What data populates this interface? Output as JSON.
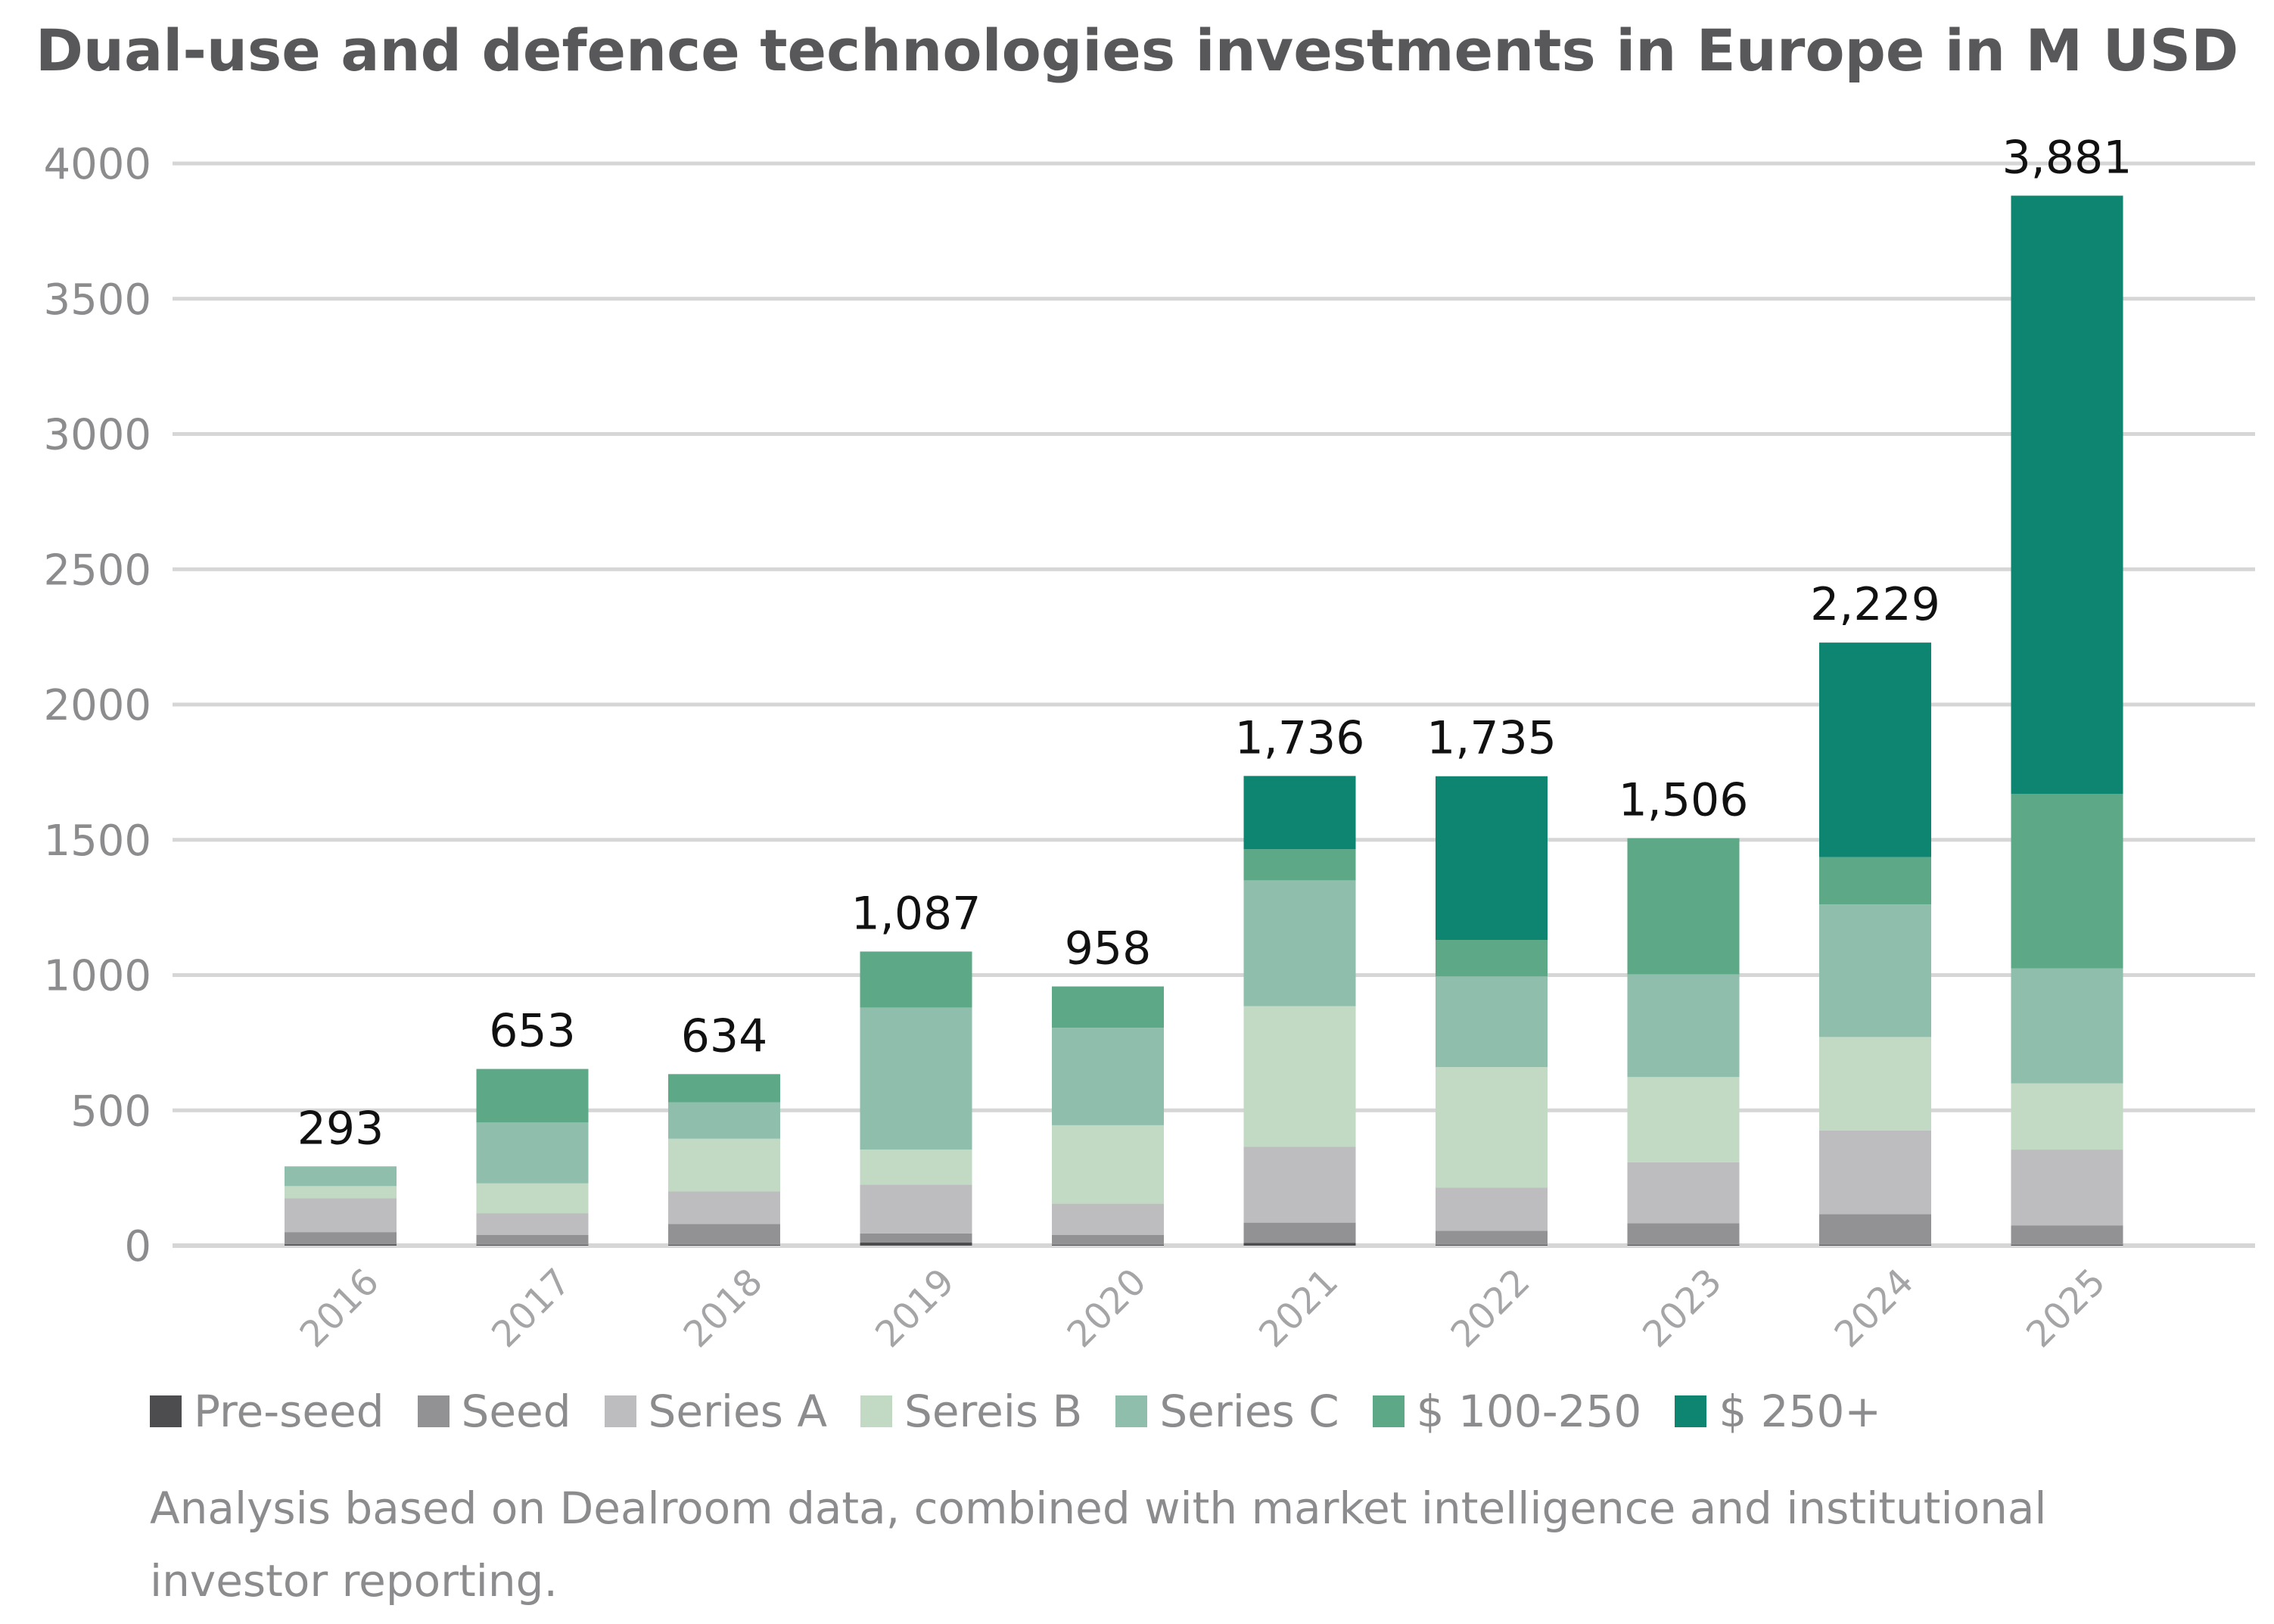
{
  "chart_data": {
    "type": "bar",
    "stacked": true,
    "title": "Dual-use and defence technologies investments in Europe in M USD",
    "xlabel": "",
    "ylabel": "",
    "ylim": [
      0,
      4000
    ],
    "yticks": [
      "0",
      "500",
      "1000",
      "1500",
      "2000",
      "2500",
      "3000",
      "3500",
      "4000"
    ],
    "categories": [
      "2016",
      "2017",
      "2018",
      "2019",
      "2020",
      "2021",
      "2022",
      "2023",
      "2024",
      "2025"
    ],
    "series": [
      {
        "name": "Pre-seed",
        "color": "#4d4d4f",
        "values": [
          5,
          3,
          3,
          12,
          3,
          10,
          3,
          3,
          3,
          3
        ]
      },
      {
        "name": "Seed",
        "color": "#929295",
        "values": [
          45,
          37,
          77,
          33,
          37,
          75,
          52,
          80,
          113,
          72
        ]
      },
      {
        "name": "Series A",
        "color": "#bdbdbf",
        "values": [
          125,
          80,
          120,
          180,
          115,
          280,
          160,
          225,
          310,
          280
        ]
      },
      {
        "name": "Sereis B",
        "color": "#c2d9c3",
        "values": [
          45,
          110,
          195,
          130,
          290,
          520,
          445,
          315,
          345,
          245
        ]
      },
      {
        "name": "Series C",
        "color": "#8fbeac",
        "values": [
          73,
          225,
          135,
          525,
          360,
          465,
          335,
          380,
          490,
          425
        ]
      },
      {
        "name": "$ 100-250",
        "color": "#5da886",
        "values": [
          0,
          198,
          104,
          207,
          153,
          115,
          135,
          503,
          175,
          645
        ]
      },
      {
        "name": "$ 250+",
        "color": "#0d8571",
        "values": [
          0,
          0,
          0,
          0,
          0,
          271,
          605,
          0,
          793,
          2211
        ]
      }
    ],
    "totals": [
      293,
      653,
      634,
      1087,
      958,
      1736,
      1735,
      1506,
      2229,
      3881
    ],
    "total_labels": [
      "293",
      "653",
      "634",
      "1,087",
      "958",
      "1,736",
      "1,735",
      "1,506",
      "2,229",
      "3,881"
    ],
    "legend_position": "bottom",
    "grid": true,
    "footnote": "Analysis based on Dealroom data, combined with market intelligence and institutional investor reporting."
  }
}
